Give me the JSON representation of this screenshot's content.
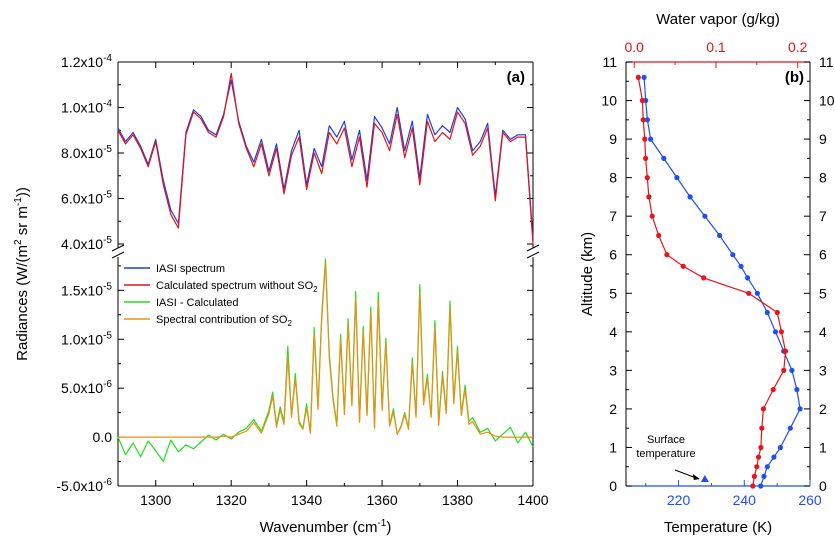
{
  "chart_data": [
    {
      "panel": "(a)",
      "type": "line",
      "xlabel": "Wavenumber (cm",
      "xlabel_sup": "-1",
      "xlabel_tail": ")",
      "xlim": [
        1290,
        1400
      ],
      "xticks": [
        "1300",
        "1320",
        "1340",
        "1360",
        "1380",
        "1400"
      ],
      "ylabel_parts": {
        "pre": "Radiances (W/(m",
        "sup1": "2",
        "mid": " sr m",
        "sup2": "-1",
        "post": "))"
      },
      "upper": {
        "ylim": [
          4e-05,
          0.00012
        ],
        "yticks": [
          {
            "value": 4e-05,
            "mant": "4.0x10",
            "exp": "-5"
          },
          {
            "value": 6e-05,
            "mant": "6.0x10",
            "exp": "-5"
          },
          {
            "value": 8e-05,
            "mant": "8.0x10",
            "exp": "-5"
          },
          {
            "value": 0.0001,
            "mant": "1.0x10",
            "exp": "-4"
          },
          {
            "value": 0.00012,
            "mant": "1.2x10",
            "exp": "-4"
          }
        ],
        "x": [
          1290,
          1292,
          1294,
          1296,
          1298,
          1300,
          1302,
          1304,
          1306,
          1308,
          1310,
          1312,
          1314,
          1316,
          1318,
          1320,
          1322,
          1324,
          1326,
          1328,
          1330,
          1332,
          1334,
          1336,
          1338,
          1340,
          1342,
          1344,
          1346,
          1348,
          1350,
          1352,
          1354,
          1356,
          1358,
          1360,
          1362,
          1364,
          1366,
          1368,
          1370,
          1372,
          1374,
          1376,
          1378,
          1380,
          1382,
          1384,
          1386,
          1388,
          1390,
          1392,
          1394,
          1396,
          1398,
          1400
        ],
        "series": [
          {
            "name": "IASI spectrum",
            "color": "#1f3fd6",
            "values": [
              9.1e-05,
              8.5e-05,
              8.9e-05,
              8.3e-05,
              7.5e-05,
              8.6e-05,
              6.8e-05,
              5.5e-05,
              4.9e-05,
              8.9e-05,
              9.9e-05,
              9.6e-05,
              9e-05,
              8.8e-05,
              9.7e-05,
              0.000112,
              9.4e-05,
              8.3e-05,
              7.6e-05,
              8.6e-05,
              7.2e-05,
              8.4e-05,
              6.4e-05,
              8.1e-05,
              9e-05,
              6.6e-05,
              8.2e-05,
              7.4e-05,
              9.2e-05,
              8.7e-05,
              9.4e-05,
              7.7e-05,
              9e-05,
              6.8e-05,
              9.6e-05,
              9.1e-05,
              8.4e-05,
              0.0001,
              8.1e-05,
              9.4e-05,
              6.9e-05,
              9.7e-05,
              8.8e-05,
              9.2e-05,
              8.9e-05,
              0.0001,
              9.5e-05,
              8.1e-05,
              8.5e-05,
              9.3e-05,
              6.1e-05,
              9e-05,
              8.6e-05,
              8.8e-05,
              8.8e-05,
              4.2e-05
            ]
          },
          {
            "name": "Calculated spectrum without SO",
            "name_sub": "2",
            "color": "#e3121b",
            "values": [
              9e-05,
              8.4e-05,
              8.8e-05,
              8.2e-05,
              7.4e-05,
              8.5e-05,
              6.6e-05,
              5.3e-05,
              4.7e-05,
              8.8e-05,
              9.8e-05,
              9.5e-05,
              8.9e-05,
              8.7e-05,
              9.6e-05,
              0.000115,
              9.3e-05,
              8.2e-05,
              7.4e-05,
              8.4e-05,
              7e-05,
              8.2e-05,
              6.2e-05,
              7.9e-05,
              8.7e-05,
              6.4e-05,
              8e-05,
              7.1e-05,
              8.9e-05,
              8.4e-05,
              9.1e-05,
              7.4e-05,
              8.7e-05,
              6.5e-05,
              9.3e-05,
              8.9e-05,
              8.1e-05,
              9.7e-05,
              7.8e-05,
              9.1e-05,
              6.6e-05,
              9.4e-05,
              8.5e-05,
              8.9e-05,
              8.6e-05,
              9.8e-05,
              9.3e-05,
              7.9e-05,
              8.3e-05,
              9.1e-05,
              5.9e-05,
              8.9e-05,
              8.5e-05,
              8.7e-05,
              8.7e-05,
              4e-05
            ]
          }
        ]
      },
      "lower": {
        "ylim": [
          -5e-06,
          1.8e-05
        ],
        "yticks": [
          {
            "value": -5e-06,
            "mant": "-5.0x10",
            "exp": "-6"
          },
          {
            "value": 0.0,
            "mant": "0.0",
            "exp": ""
          },
          {
            "value": 5e-06,
            "mant": "5.0x10",
            "exp": "-6"
          },
          {
            "value": 1e-05,
            "mant": "1.0x10",
            "exp": "-5"
          },
          {
            "value": 1.5e-05,
            "mant": "1.5x10",
            "exp": "-5"
          }
        ],
        "x": [
          1290,
          1292,
          1294,
          1296,
          1298,
          1300,
          1302,
          1304,
          1306,
          1308,
          1310,
          1312,
          1314,
          1316,
          1318,
          1320,
          1322,
          1324,
          1326,
          1328,
          1330,
          1331,
          1332,
          1333,
          1334,
          1335,
          1336,
          1337,
          1338,
          1339,
          1340,
          1341,
          1342,
          1343,
          1344,
          1345,
          1346,
          1347,
          1348,
          1349,
          1350,
          1351,
          1352,
          1353,
          1354,
          1355,
          1356,
          1357,
          1358,
          1359,
          1360,
          1361,
          1362,
          1363,
          1364,
          1365,
          1366,
          1367,
          1368,
          1369,
          1370,
          1371,
          1372,
          1373,
          1374,
          1375,
          1376,
          1377,
          1378,
          1379,
          1380,
          1381,
          1382,
          1383,
          1384,
          1386,
          1388,
          1390,
          1392,
          1394,
          1396,
          1398,
          1400
        ],
        "series": [
          {
            "name": "IASI - Calculated",
            "color": "#22e01a",
            "values": [
              0.0,
              -1.8e-06,
              -6e-07,
              -2e-06,
              -4e-07,
              -1.4e-06,
              -2.5e-06,
              -3e-07,
              -1.5e-06,
              -8e-07,
              -1.2e-06,
              -5e-07,
              2e-07,
              -3e-07,
              3e-07,
              -2e-07,
              5e-07,
              9e-07,
              1.8e-06,
              6e-07,
              2.7e-06,
              4.6e-06,
              1.2e-06,
              3.1e-06,
              1.5e-06,
              9.3e-06,
              2.2e-06,
              6.5e-06,
              1.6e-06,
              9e-07,
              3.4e-06,
              4e-07,
              1.12e-05,
              3.1e-06,
              1.25e-05,
              1.82e-05,
              8.5e-06,
              4.1e-06,
              1.3e-06,
              1.05e-05,
              2.5e-06,
              1.21e-05,
              3.4e-06,
              1.49e-05,
              1.6e-06,
              1.13e-05,
              2.4e-06,
              1.33e-05,
              1e-06,
              1.48e-05,
              3e-06,
              1.01e-05,
              1.2e-06,
              2.9e-06,
              3e-07,
              1.1e-06,
              2.5e-06,
              9e-07,
              8.1e-06,
              2.2e-06,
              1.56e-05,
              3.6e-06,
              6.4e-06,
              2.1e-06,
              1.19e-05,
              1.4e-06,
              6.7e-06,
              2.6e-06,
              1.39e-05,
              3.7e-06,
              9.3e-06,
              2.4e-06,
              5.3e-06,
              1.6e-06,
              2e-06,
              5e-07,
              9e-07,
              -4e-07,
              3e-07,
              1e-06,
              -6e-07,
              5e-07,
              -1e-06
            ]
          },
          {
            "name": "Spectral contribution of SO",
            "name_sub": "2",
            "color": "#e8901a",
            "values": [
              0.0,
              0.0,
              0.0,
              0.0,
              0.0,
              0.0,
              0.0,
              0.0,
              0.0,
              0.0,
              0.0,
              0.0,
              0.0,
              0.0,
              1e-07,
              0.0,
              3e-07,
              6e-07,
              1.5e-06,
              4e-07,
              2.4e-06,
              4.2e-06,
              1e-06,
              2.8e-06,
              1.3e-06,
              8.2e-06,
              2e-06,
              6e-06,
              1.4e-06,
              8e-07,
              3e-06,
              4e-07,
              1.06e-05,
              2.8e-06,
              1.2e-05,
              1.78e-05,
              8e-06,
              3.8e-06,
              1.1e-06,
              1e-05,
              2.3e-06,
              1.16e-05,
              3.2e-06,
              1.42e-05,
              1.5e-06,
              1.08e-05,
              2.2e-06,
              1.28e-05,
              9e-07,
              1.39e-05,
              2.7e-06,
              9.6e-06,
              1.1e-06,
              2.6e-06,
              3e-07,
              1e-06,
              2.3e-06,
              8e-07,
              7.6e-06,
              2e-06,
              1.48e-05,
              3.3e-06,
              6e-06,
              2e-06,
              1.12e-05,
              1.2e-06,
              6.3e-06,
              2.4e-06,
              1.32e-05,
              3.4e-06,
              8.8e-06,
              2.2e-06,
              4.9e-06,
              1.3e-06,
              1.6e-06,
              3e-07,
              5e-07,
              1e-07,
              0.0,
              0.0,
              0.0,
              0.0,
              0.0
            ]
          }
        ]
      },
      "legend_position": "middle-left"
    },
    {
      "panel": "(b)",
      "type": "line",
      "ylabel": "Altitude (km)",
      "ylim": [
        0,
        11
      ],
      "yticks": [
        "0",
        "1",
        "2",
        "3",
        "4",
        "5",
        "6",
        "7",
        "8",
        "9",
        "10",
        "11"
      ],
      "xlabel_bottom": "Temperature (K)",
      "xlim_bottom": [
        204,
        260
      ],
      "xticks_bottom": [
        "220",
        "240",
        "260"
      ],
      "xlabel_top": "Water vapor (g/kg)",
      "xlim_top": [
        -0.01,
        0.215
      ],
      "xticks_top": [
        "0.0",
        "0.1",
        "0.2"
      ],
      "altitude": [
        0.0,
        0.25,
        0.5,
        0.75,
        1.0,
        1.5,
        2.0,
        2.5,
        3.0,
        3.5,
        4.0,
        4.5,
        5.0,
        5.4,
        5.7,
        6.0,
        6.5,
        7.0,
        7.5,
        8.0,
        8.5,
        9.0,
        9.5,
        10.0,
        10.6
      ],
      "series": [
        {
          "name": "Temperature",
          "axis": "bottom",
          "color": "#1f4ff0",
          "values": [
            245.0,
            246.0,
            247.0,
            249.0,
            251.0,
            254.0,
            257.0,
            256.0,
            254.5,
            252.0,
            249.5,
            247.0,
            244.0,
            241.0,
            239.0,
            236.5,
            232.5,
            228.0,
            223.5,
            219.5,
            215.5,
            211.5,
            210.5,
            210.0,
            209.5
          ]
        },
        {
          "name": "Water vapor",
          "axis": "top",
          "color": "#e8141c",
          "values": [
            0.145,
            0.147,
            0.15,
            0.152,
            0.155,
            0.156,
            0.158,
            0.17,
            0.183,
            0.185,
            0.18,
            0.175,
            0.14,
            0.085,
            0.06,
            0.04,
            0.03,
            0.022,
            0.018,
            0.016,
            0.014,
            0.013,
            0.011,
            0.01,
            0.005
          ]
        }
      ],
      "annotation": {
        "line1": "Surface",
        "line2": "temperature",
        "value": 228.0,
        "unit_axis": "bottom"
      }
    }
  ]
}
